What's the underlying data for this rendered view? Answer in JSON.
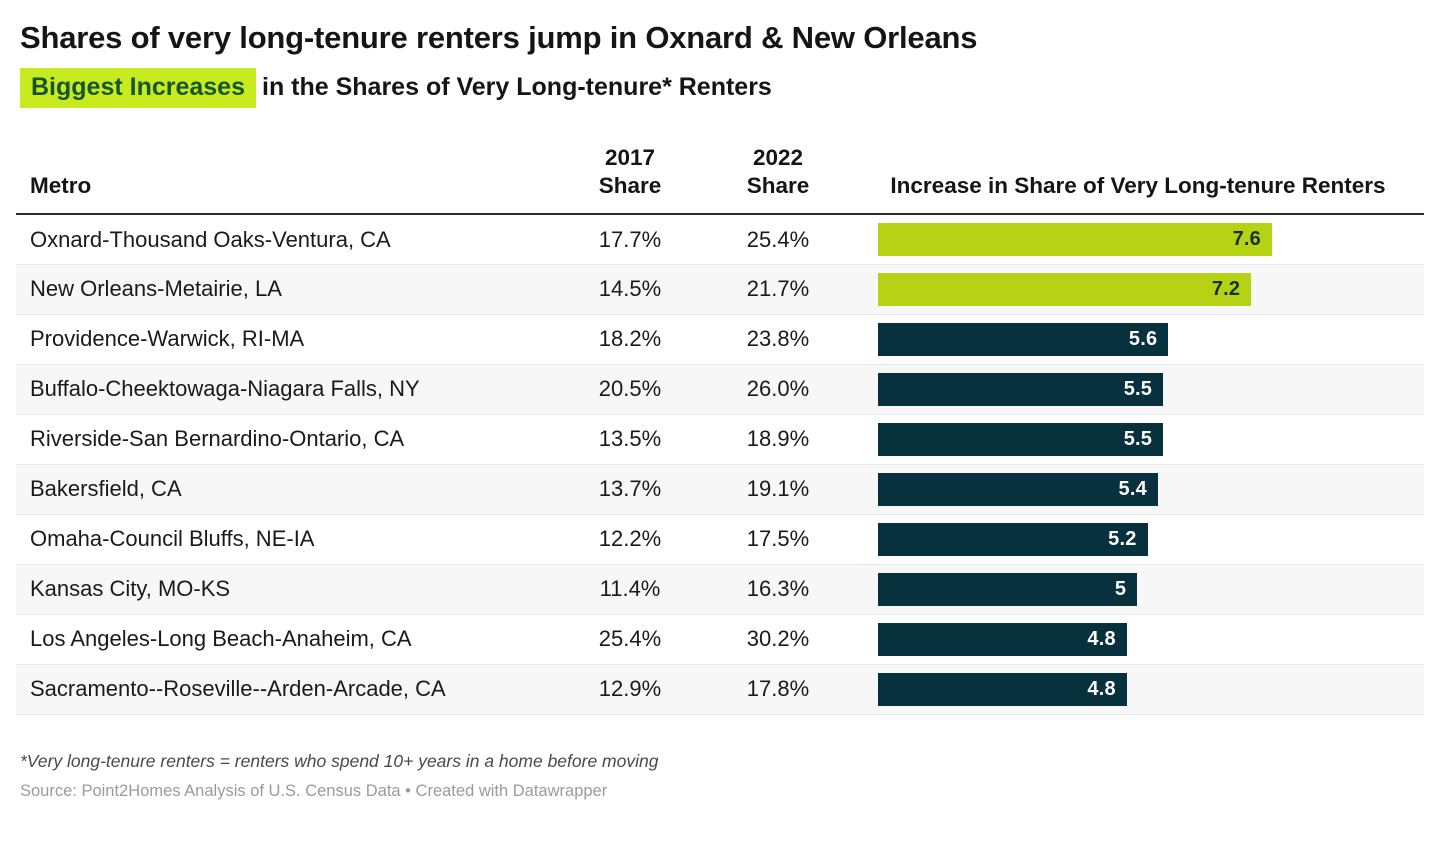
{
  "header": {
    "title": "Shares of very long-tenure renters jump in Oxnard & New Orleans",
    "subtitle_highlight": "Biggest Increases",
    "subtitle_rest": "in the Shares of Very Long-tenure* Renters"
  },
  "table": {
    "columns": {
      "metro": "Metro",
      "share2017": "2017\nShare",
      "share2022": "2022\nShare",
      "increase": "Increase in Share of Very Long-tenure Renters"
    },
    "rows": [
      {
        "metro": "Oxnard-Thousand Oaks-Ventura, CA",
        "share2017": "17.7%",
        "share2022": "25.4%",
        "increase_label": "7.6",
        "increase_value": 7.6,
        "highlight": true
      },
      {
        "metro": "New Orleans-Metairie, LA",
        "share2017": "14.5%",
        "share2022": "21.7%",
        "increase_label": "7.2",
        "increase_value": 7.2,
        "highlight": true
      },
      {
        "metro": "Providence-Warwick, RI-MA",
        "share2017": "18.2%",
        "share2022": "23.8%",
        "increase_label": "5.6",
        "increase_value": 5.6,
        "highlight": false
      },
      {
        "metro": "Buffalo-Cheektowaga-Niagara Falls, NY",
        "share2017": "20.5%",
        "share2022": "26.0%",
        "increase_label": "5.5",
        "increase_value": 5.5,
        "highlight": false
      },
      {
        "metro": "Riverside-San Bernardino-Ontario, CA",
        "share2017": "13.5%",
        "share2022": "18.9%",
        "increase_label": "5.5",
        "increase_value": 5.5,
        "highlight": false
      },
      {
        "metro": "Bakersfield, CA",
        "share2017": "13.7%",
        "share2022": "19.1%",
        "increase_label": "5.4",
        "increase_value": 5.4,
        "highlight": false
      },
      {
        "metro": "Omaha-Council Bluffs, NE-IA",
        "share2017": "12.2%",
        "share2022": "17.5%",
        "increase_label": "5.2",
        "increase_value": 5.2,
        "highlight": false
      },
      {
        "metro": "Kansas City, MO-KS",
        "share2017": "11.4%",
        "share2022": "16.3%",
        "increase_label": "5",
        "increase_value": 5.0,
        "highlight": false
      },
      {
        "metro": "Los Angeles-Long Beach-Anaheim, CA",
        "share2017": "25.4%",
        "share2022": "30.2%",
        "increase_label": "4.8",
        "increase_value": 4.8,
        "highlight": false
      },
      {
        "metro": "Sacramento--Roseville--Arden-Arcade, CA",
        "share2017": "12.9%",
        "share2022": "17.8%",
        "increase_label": "4.8",
        "increase_value": 4.8,
        "highlight": false
      }
    ]
  },
  "chart_data": {
    "type": "bar",
    "title": "Biggest Increases in the Shares of Very Long-tenure* Renters",
    "categories": [
      "Oxnard-Thousand Oaks-Ventura, CA",
      "New Orleans-Metairie, LA",
      "Providence-Warwick, RI-MA",
      "Buffalo-Cheektowaga-Niagara Falls, NY",
      "Riverside-San Bernardino-Ontario, CA",
      "Bakersfield, CA",
      "Omaha-Council Bluffs, NE-IA",
      "Kansas City, MO-KS",
      "Los Angeles-Long Beach-Anaheim, CA",
      "Sacramento--Roseville--Arden-Arcade, CA"
    ],
    "series": [
      {
        "name": "2017 Share (%)",
        "values": [
          17.7,
          14.5,
          18.2,
          20.5,
          13.5,
          13.7,
          12.2,
          11.4,
          25.4,
          12.9
        ]
      },
      {
        "name": "2022 Share (%)",
        "values": [
          25.4,
          21.7,
          23.8,
          26.0,
          18.9,
          19.1,
          17.5,
          16.3,
          30.2,
          17.8
        ]
      },
      {
        "name": "Increase in Share of Very Long-tenure Renters (pp)",
        "values": [
          7.6,
          7.2,
          5.6,
          5.5,
          5.5,
          5.4,
          5.2,
          5,
          4.8,
          4.8
        ]
      }
    ],
    "orientation": "horizontal",
    "xlabel": "",
    "ylabel": "",
    "xlim": [
      0,
      7.6
    ],
    "grid": false,
    "legend_position": "none",
    "highlighted_categories": [
      "Oxnard-Thousand Oaks-Ventura, CA",
      "New Orleans-Metairie, LA"
    ]
  },
  "footer": {
    "footnote": "*Very long-tenure renters = renters who spend 10+ years in a home before moving",
    "source": "Source: Point2Homes Analysis of U.S. Census Data • Created with Datawrapper"
  },
  "colors": {
    "highlight_bg": "#c7eb1f",
    "highlight_text": "#17552d",
    "bar_highlight": "#b5d314",
    "bar_default": "#06313d",
    "bar_label_on_highlight": "#143122",
    "bar_label_on_default": "#ffffff",
    "stripe": "#f7f7f7",
    "header_rule": "#2b2b2b"
  }
}
